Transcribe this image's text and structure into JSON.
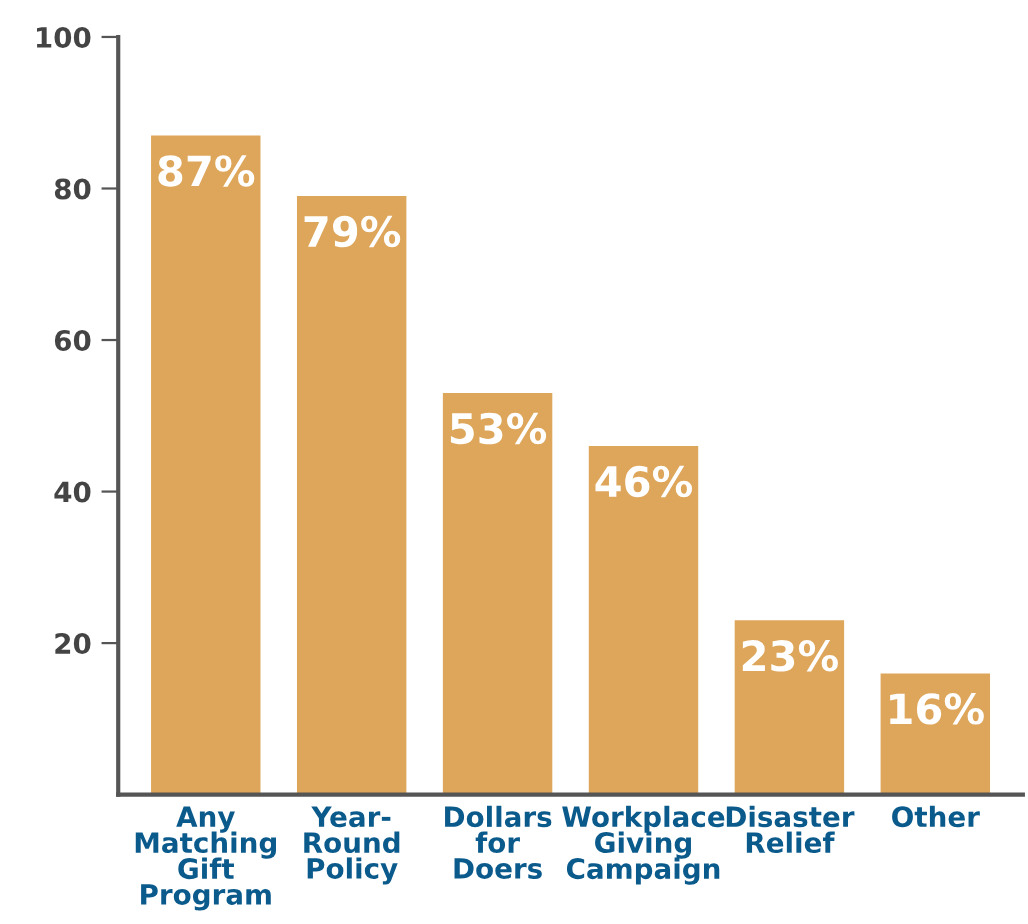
{
  "chart_data": {
    "type": "bar",
    "categories": [
      "Any\nMatching\nGift\nProgram",
      "Year-\nRound\nPolicy",
      "Dollars\nfor\nDoers",
      "Workplace\nGiving\nCampaign",
      "Disaster\nRelief",
      "Other"
    ],
    "values": [
      87,
      79,
      53,
      46,
      23,
      16
    ],
    "value_labels": [
      "87%",
      "79%",
      "53%",
      "46%",
      "23%",
      "16%"
    ],
    "color": "#dea65b",
    "ylim": [
      0,
      100
    ],
    "yticks": [
      20,
      40,
      60,
      80,
      100
    ],
    "grid": false
  }
}
